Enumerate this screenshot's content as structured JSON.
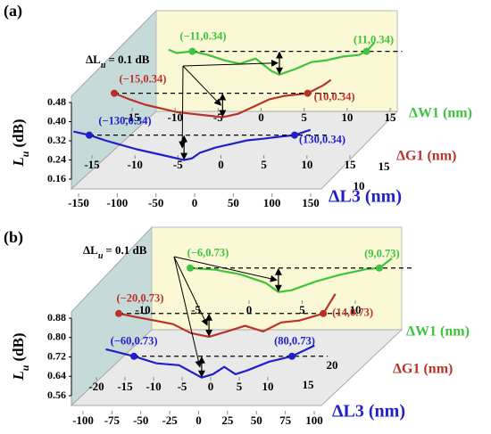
{
  "chart_data": [
    {
      "type": "waterfall3d",
      "label": "(a)",
      "zlabel": {
        "main": "L",
        "sub": "u",
        "unit": "(dB)"
      },
      "zlim": [
        0.16,
        0.48
      ],
      "zticks": [
        0.16,
        0.24,
        0.32,
        {
          "value": 0.4,
          "label": "0.40"
        },
        0.48
      ],
      "depth_ticks": [
        10,
        15
      ],
      "annotation": {
        "prefix": "ΔL",
        "sub": "u",
        "text": "= 0.1 dB"
      },
      "series": [
        {
          "name": "ΔW1 (nm)",
          "color": "#3cc43c",
          "xlim": [
            -15,
            15
          ],
          "xticks": [
            -15,
            -10,
            -5,
            0,
            5,
            10,
            15
          ],
          "x": [
            -14,
            -13,
            -11,
            -9,
            -7,
            -5,
            -3,
            -1,
            0,
            2,
            4,
            6,
            8,
            10,
            11,
            12
          ],
          "values": [
            0.347,
            0.333,
            0.34,
            0.325,
            0.303,
            0.288,
            0.31,
            0.258,
            0.243,
            0.266,
            0.295,
            0.303,
            0.318,
            0.325,
            0.34,
            0.377
          ],
          "points": [
            {
              "x": -11,
              "y": 0.34,
              "label": "(−11,0.34)"
            },
            {
              "x": 11,
              "y": 0.34,
              "label": "(11,0.34)"
            }
          ]
        },
        {
          "name": "ΔG1 (nm)",
          "color": "#b8322a",
          "xlim": [
            -15,
            15
          ],
          "xticks": [
            -15,
            -10,
            -5,
            0,
            5,
            10,
            15
          ],
          "x": [
            -15,
            -13,
            -11,
            -9,
            -7,
            -5,
            -3,
            -1,
            1,
            3,
            5,
            7,
            9,
            10,
            12,
            13
          ],
          "values": [
            0.34,
            0.314,
            0.292,
            0.277,
            0.262,
            0.254,
            0.247,
            0.24,
            0.254,
            0.284,
            0.314,
            0.329,
            0.336,
            0.34,
            0.373,
            0.396
          ],
          "points": [
            {
              "x": -15,
              "y": 0.34,
              "label": "(−15,0.34)"
            },
            {
              "x": 10,
              "y": 0.34,
              "label": "(10,0.34)"
            }
          ]
        },
        {
          "name": "ΔL3 (nm)",
          "color": "#2020c8",
          "xlim": [
            -150,
            150
          ],
          "xticks": [
            -150,
            -100,
            -50,
            0,
            50,
            100,
            150
          ],
          "x": [
            -150,
            -130,
            -110,
            -90,
            -70,
            -50,
            -30,
            -10,
            0,
            10,
            30,
            50,
            70,
            90,
            110,
            130,
            150
          ],
          "values": [
            0.355,
            0.34,
            0.318,
            0.299,
            0.281,
            0.266,
            0.251,
            0.236,
            0.243,
            0.266,
            0.288,
            0.303,
            0.318,
            0.325,
            0.333,
            0.34,
            0.362
          ],
          "points": [
            {
              "x": -130,
              "y": 0.34,
              "label": "(−130,0.34)"
            },
            {
              "x": 130,
              "y": 0.34,
              "label": "(130,0.34)"
            }
          ]
        }
      ]
    },
    {
      "type": "waterfall3d",
      "label": "(b)",
      "zlabel": {
        "main": "L",
        "sub": "u",
        "unit": "(dB)"
      },
      "zlim": [
        0.56,
        0.88
      ],
      "zticks": [
        0.56,
        0.64,
        0.72,
        {
          "value": 0.8,
          "label": "0.80"
        },
        0.88
      ],
      "depth_ticks": [
        15,
        20
      ],
      "annotation": {
        "prefix": "ΔL",
        "sub": "u",
        "text": "= 0.1 dB"
      },
      "series": [
        {
          "name": "ΔW1 (nm)",
          "color": "#3cc43c",
          "xlim": [
            -10,
            10
          ],
          "xticks": [
            -10,
            -5,
            0,
            5,
            10
          ],
          "x": [
            -6,
            -4,
            -2,
            0,
            1,
            2,
            4,
            6,
            8,
            9,
            10
          ],
          "values": [
            0.73,
            0.723,
            0.704,
            0.668,
            0.631,
            0.638,
            0.675,
            0.704,
            0.726,
            0.73,
            0.77
          ],
          "points": [
            {
              "x": -6,
              "y": 0.73,
              "label": "(−6,0.73)"
            },
            {
              "x": 9,
              "y": 0.73,
              "label": "(9,0.73)"
            }
          ]
        },
        {
          "name": "ΔG1 (nm)",
          "color": "#b8322a",
          "xlim": [
            -20,
            20
          ],
          "xticks": [
            -20,
            -15,
            -10,
            -5,
            0,
            5,
            10
          ],
          "x": [
            -20,
            -17,
            -14,
            -11,
            -8,
            -5,
            -2,
            1,
            4,
            7,
            10,
            14,
            16
          ],
          "values": [
            0.73,
            0.715,
            0.701,
            0.686,
            0.649,
            0.634,
            0.656,
            0.679,
            0.656,
            0.693,
            0.701,
            0.73,
            0.811
          ],
          "points": [
            {
              "x": -20,
              "y": 0.73,
              "label": "(−20,0.73)"
            },
            {
              "x": 14,
              "y": 0.73,
              "label": "(14,0.73)"
            }
          ]
        },
        {
          "name": "ΔL3 (nm)",
          "color": "#2020c8",
          "xlim": [
            -100,
            100
          ],
          "xticks": [
            -100,
            -75,
            -50,
            -25,
            0,
            25,
            50,
            75,
            100
          ],
          "x": [
            -85,
            -60,
            -40,
            -20,
            0,
            10,
            20,
            30,
            40,
            60,
            80,
            100
          ],
          "values": [
            0.759,
            0.73,
            0.701,
            0.693,
            0.642,
            0.656,
            0.686,
            0.656,
            0.671,
            0.708,
            0.73,
            0.774
          ],
          "points": [
            {
              "x": -60,
              "y": 0.73,
              "label": "(−60,0.73)"
            },
            {
              "x": 80,
              "y": 0.73,
              "label": "(80,0.73)"
            }
          ]
        }
      ]
    }
  ]
}
